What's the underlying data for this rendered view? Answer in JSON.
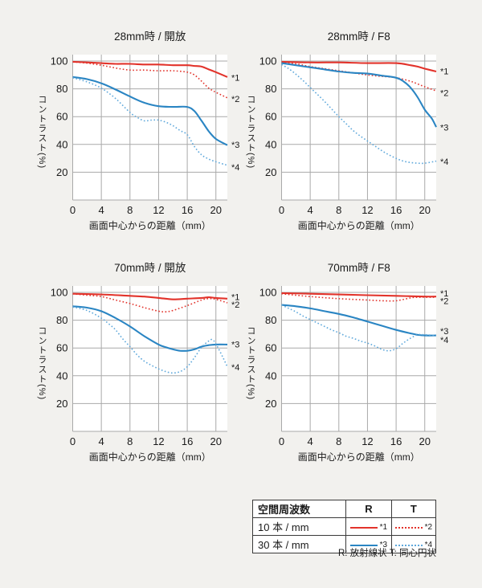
{
  "page": {
    "background": "#f2f1ee"
  },
  "colors": {
    "red": "#e2332b",
    "red_dotted": "#e2332b",
    "blue": "#2a85c3",
    "blue_dotted": "#5fa8db",
    "grid": "#a9a9a9",
    "plot_bg": "#ffffff",
    "text": "#1a1a1a",
    "table_border": "#3a3a3a"
  },
  "axes": {
    "ylabel": "コントラスト(%)",
    "xlabel": "画面中心からの距離（mm）",
    "x_ticks": [
      0,
      4,
      8,
      12,
      16,
      20
    ],
    "y_ticks": [
      20,
      40,
      60,
      80,
      100
    ],
    "xlim": [
      0,
      21.6
    ],
    "ylim": [
      0,
      104.6
    ],
    "grid": true
  },
  "chart_data": [
    {
      "type": "line",
      "title": "28mm時 / 開放",
      "xlabel": "画面中心からの距離（mm）",
      "ylabel": "コントラスト(%)",
      "series": [
        {
          "name": "*1",
          "legend": "10本/mm R",
          "color": "red",
          "style": "solid",
          "label_y": 88,
          "points": [
            [
              0,
              99.5
            ],
            [
              2,
              99
            ],
            [
              4,
              98.5
            ],
            [
              6,
              98
            ],
            [
              8,
              98
            ],
            [
              10,
              97.5
            ],
            [
              12,
              97.5
            ],
            [
              14,
              97
            ],
            [
              16,
              97
            ],
            [
              17,
              96.5
            ],
            [
              18,
              96
            ],
            [
              19,
              94
            ],
            [
              20,
              92
            ],
            [
              21.6,
              88.5
            ]
          ]
        },
        {
          "name": "*2",
          "legend": "10本/mm T",
          "color": "red_dotted",
          "style": "dotted",
          "label_y": 72.5,
          "points": [
            [
              0,
              99.5
            ],
            [
              2,
              98.5
            ],
            [
              4,
              97
            ],
            [
              6,
              95
            ],
            [
              8,
              93.5
            ],
            [
              10,
              93.5
            ],
            [
              12,
              93
            ],
            [
              14,
              93
            ],
            [
              16,
              92
            ],
            [
              17,
              90
            ],
            [
              18,
              85.5
            ],
            [
              19,
              80.5
            ],
            [
              20,
              77.5
            ],
            [
              21.6,
              73.5
            ]
          ]
        },
        {
          "name": "*3",
          "legend": "30本/mm R",
          "color": "blue",
          "style": "solid",
          "label_y": 39.5,
          "points": [
            [
              0,
              88.5
            ],
            [
              2,
              87
            ],
            [
              4,
              84
            ],
            [
              6,
              79.5
            ],
            [
              8,
              74.5
            ],
            [
              10,
              70
            ],
            [
              12,
              67.5
            ],
            [
              14,
              67
            ],
            [
              16,
              67
            ],
            [
              17,
              64
            ],
            [
              18,
              57
            ],
            [
              19,
              49.5
            ],
            [
              20,
              44
            ],
            [
              21.6,
              39.5
            ]
          ]
        },
        {
          "name": "*4",
          "legend": "30本/mm T",
          "color": "blue_dotted",
          "style": "dotted",
          "label_y": 23.5,
          "points": [
            [
              0,
              88
            ],
            [
              2,
              85
            ],
            [
              4,
              80.5
            ],
            [
              6,
              73
            ],
            [
              8,
              63
            ],
            [
              9,
              59.5
            ],
            [
              10,
              57
            ],
            [
              11,
              57.5
            ],
            [
              12,
              57.5
            ],
            [
              13,
              56
            ],
            [
              14,
              53.5
            ],
            [
              15,
              50
            ],
            [
              16,
              47
            ],
            [
              17,
              38.5
            ],
            [
              18,
              32.5
            ],
            [
              19,
              29.5
            ],
            [
              20,
              27.5
            ],
            [
              21.6,
              25
            ]
          ]
        }
      ]
    },
    {
      "type": "line",
      "title": "28mm時 / F8",
      "xlabel": "画面中心からの距離（mm）",
      "ylabel": "コントラスト(%)",
      "series": [
        {
          "name": "*1",
          "legend": "10本/mm R",
          "color": "red",
          "style": "solid",
          "label_y": 92.5,
          "points": [
            [
              0,
              99.5
            ],
            [
              4,
              99
            ],
            [
              8,
              99
            ],
            [
              12,
              98.5
            ],
            [
              16,
              98.5
            ],
            [
              18,
              97
            ],
            [
              19,
              96
            ],
            [
              20,
              94.5
            ],
            [
              21.6,
              92.5
            ]
          ]
        },
        {
          "name": "*2",
          "legend": "10本/mm T",
          "color": "red_dotted",
          "style": "dotted",
          "label_y": 77,
          "points": [
            [
              0,
              99
            ],
            [
              2,
              98
            ],
            [
              4,
              96
            ],
            [
              6,
              94.5
            ],
            [
              8,
              93
            ],
            [
              10,
              91.5
            ],
            [
              12,
              90
            ],
            [
              14,
              89
            ],
            [
              16,
              88
            ],
            [
              18,
              85.5
            ],
            [
              19,
              83.5
            ],
            [
              20,
              81.5
            ],
            [
              21.6,
              78.5
            ]
          ]
        },
        {
          "name": "*3",
          "legend": "30本/mm R",
          "color": "blue",
          "style": "solid",
          "label_y": 52,
          "points": [
            [
              0,
              98.5
            ],
            [
              2,
              97
            ],
            [
              4,
              95.5
            ],
            [
              6,
              94
            ],
            [
              8,
              92.5
            ],
            [
              10,
              91.5
            ],
            [
              12,
              91
            ],
            [
              14,
              89.5
            ],
            [
              16,
              88
            ],
            [
              17,
              85.5
            ],
            [
              18,
              81
            ],
            [
              19,
              74
            ],
            [
              20,
              65
            ],
            [
              21,
              58.5
            ],
            [
              21.6,
              52.5
            ]
          ]
        },
        {
          "name": "*4",
          "legend": "30本/mm T",
          "color": "blue_dotted",
          "style": "dotted",
          "label_y": 27.5,
          "points": [
            [
              0,
              97.5
            ],
            [
              1,
              94.5
            ],
            [
              2,
              90.5
            ],
            [
              3,
              86
            ],
            [
              4,
              81
            ],
            [
              5,
              76
            ],
            [
              6,
              71
            ],
            [
              7,
              65.5
            ],
            [
              8,
              60
            ],
            [
              9,
              55
            ],
            [
              10,
              50
            ],
            [
              11,
              46
            ],
            [
              12,
              42.5
            ],
            [
              13,
              39
            ],
            [
              14,
              35.5
            ],
            [
              15,
              32.5
            ],
            [
              16,
              30
            ],
            [
              17,
              28
            ],
            [
              18,
              27
            ],
            [
              19,
              26.5
            ],
            [
              20,
              26.5
            ],
            [
              21.6,
              28
            ]
          ]
        }
      ]
    },
    {
      "type": "line",
      "title": "70mm時 / 開放",
      "xlabel": "画面中心からの距離（mm）",
      "ylabel": "コントラスト(%)",
      "series": [
        {
          "name": "*1",
          "legend": "10本/mm R",
          "color": "red",
          "style": "solid",
          "label_y": 96.5,
          "points": [
            [
              0,
              99
            ],
            [
              4,
              98.5
            ],
            [
              8,
              97.5
            ],
            [
              10,
              97
            ],
            [
              12,
              96
            ],
            [
              14,
              95
            ],
            [
              16,
              95.5
            ],
            [
              18,
              96
            ],
            [
              19,
              96.5
            ],
            [
              20,
              96
            ],
            [
              21.6,
              95.5
            ]
          ]
        },
        {
          "name": "*2",
          "legend": "10本/mm T",
          "color": "red_dotted",
          "style": "dotted",
          "label_y": 91,
          "points": [
            [
              0,
              99
            ],
            [
              2,
              98
            ],
            [
              4,
              97
            ],
            [
              6,
              94.5
            ],
            [
              8,
              92
            ],
            [
              10,
              89
            ],
            [
              12,
              86.5
            ],
            [
              13,
              86
            ],
            [
              14,
              87
            ],
            [
              16,
              90.5
            ],
            [
              18,
              94.5
            ],
            [
              19,
              95.5
            ],
            [
              20,
              95
            ],
            [
              21.6,
              92.5
            ]
          ]
        },
        {
          "name": "*3",
          "legend": "30本/mm R",
          "color": "blue",
          "style": "solid",
          "label_y": 62.5,
          "points": [
            [
              0,
              90
            ],
            [
              2,
              89
            ],
            [
              4,
              86.5
            ],
            [
              6,
              81.5
            ],
            [
              8,
              75.5
            ],
            [
              10,
              68.5
            ],
            [
              12,
              62.5
            ],
            [
              13,
              60.5
            ],
            [
              14,
              59
            ],
            [
              15,
              58
            ],
            [
              16,
              58
            ],
            [
              17,
              59
            ],
            [
              18,
              61
            ],
            [
              19,
              62
            ],
            [
              20,
              62.5
            ],
            [
              21.6,
              62.5
            ]
          ]
        },
        {
          "name": "*4",
          "legend": "30本/mm T",
          "color": "blue_dotted",
          "style": "dotted",
          "label_y": 46,
          "points": [
            [
              0,
              89.5
            ],
            [
              2,
              87
            ],
            [
              4,
              81.5
            ],
            [
              5,
              77.5
            ],
            [
              6,
              73
            ],
            [
              7,
              66.5
            ],
            [
              8,
              61
            ],
            [
              9,
              55
            ],
            [
              10,
              50.5
            ],
            [
              11,
              47.5
            ],
            [
              12,
              45
            ],
            [
              13,
              43
            ],
            [
              14,
              42
            ],
            [
              15,
              43
            ],
            [
              16,
              46.5
            ],
            [
              17,
              53
            ],
            [
              18,
              60.5
            ],
            [
              19,
              65
            ],
            [
              19.5,
              66
            ],
            [
              20,
              63
            ],
            [
              21,
              53
            ],
            [
              21.6,
              46.5
            ]
          ]
        }
      ]
    },
    {
      "type": "line",
      "title": "70mm時 / F8",
      "xlabel": "画面中心からの距離（mm）",
      "ylabel": "コントラスト(%)",
      "series": [
        {
          "name": "*1",
          "legend": "10本/mm R",
          "color": "red",
          "style": "solid",
          "label_y": 99,
          "points": [
            [
              0,
              99.5
            ],
            [
              4,
              99
            ],
            [
              8,
              98.5
            ],
            [
              12,
              98
            ],
            [
              16,
              97.5
            ],
            [
              20,
              97
            ],
            [
              21.6,
              97
            ]
          ]
        },
        {
          "name": "*2",
          "legend": "10本/mm T",
          "color": "red_dotted",
          "style": "dotted",
          "label_y": 93.5,
          "points": [
            [
              0,
              99
            ],
            [
              4,
              97
            ],
            [
              8,
              95.5
            ],
            [
              12,
              94.5
            ],
            [
              14,
              94
            ],
            [
              16,
              94
            ],
            [
              18,
              96
            ],
            [
              19,
              96.5
            ],
            [
              21.6,
              96.5
            ]
          ]
        },
        {
          "name": "*3",
          "legend": "30本/mm R",
          "color": "blue",
          "style": "solid",
          "label_y": 72,
          "points": [
            [
              0,
              91
            ],
            [
              2,
              90
            ],
            [
              4,
              88.5
            ],
            [
              6,
              86.5
            ],
            [
              8,
              84.5
            ],
            [
              10,
              82
            ],
            [
              12,
              79
            ],
            [
              14,
              76
            ],
            [
              16,
              73
            ],
            [
              18,
              70.5
            ],
            [
              19,
              69.5
            ],
            [
              20,
              69
            ],
            [
              21.6,
              69
            ]
          ]
        },
        {
          "name": "*4",
          "legend": "30本/mm T",
          "color": "blue_dotted",
          "style": "dotted",
          "label_y": 65.5,
          "points": [
            [
              0,
              91
            ],
            [
              1,
              88.5
            ],
            [
              2,
              86
            ],
            [
              3,
              83
            ],
            [
              4,
              80.5
            ],
            [
              5,
              78
            ],
            [
              6,
              75.5
            ],
            [
              7,
              73
            ],
            [
              8,
              71
            ],
            [
              9,
              68.5
            ],
            [
              10,
              67
            ],
            [
              11,
              65
            ],
            [
              12,
              63.5
            ],
            [
              13,
              61.5
            ],
            [
              14,
              59
            ],
            [
              15,
              58
            ],
            [
              16,
              59.5
            ],
            [
              17,
              63.5
            ],
            [
              18,
              67
            ],
            [
              19,
              69.5
            ],
            [
              20,
              69.5
            ],
            [
              21.6,
              69
            ]
          ]
        }
      ]
    }
  ],
  "legend": {
    "header": [
      "空間周波数",
      "R",
      "T"
    ],
    "rows": [
      {
        "label": "10 本 / mm",
        "r_mark": "*1",
        "t_mark": "*2"
      },
      {
        "label": "30 本 / mm",
        "r_mark": "*3",
        "t_mark": "*4"
      }
    ],
    "caption": "R: 放射線状  T: 同心円状"
  }
}
